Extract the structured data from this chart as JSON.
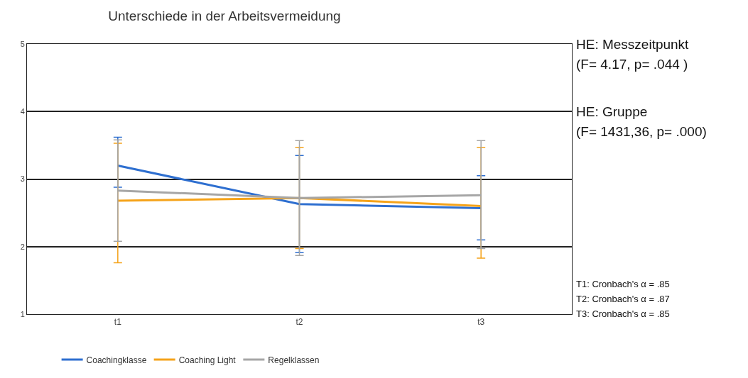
{
  "chart_data": {
    "type": "line",
    "title": "Unterschiede in der Arbeitsvermeidung",
    "categories": [
      "t1",
      "t2",
      "t3"
    ],
    "series": [
      {
        "name": "Coachingklasse",
        "color": "#2e6fd0",
        "values": [
          3.2,
          2.63,
          2.57
        ],
        "errors": [
          [
            2.88,
            3.62
          ],
          [
            1.91,
            3.35
          ],
          [
            2.1,
            3.05
          ]
        ]
      },
      {
        "name": "Coaching Light",
        "color": "#f5a31a",
        "values": [
          2.68,
          2.72,
          2.6
        ],
        "errors": [
          [
            1.76,
            3.53
          ],
          [
            1.97,
            3.47
          ],
          [
            1.83,
            3.47
          ]
        ]
      },
      {
        "name": "Regelklassen",
        "color": "#a6a6a6",
        "values": [
          2.83,
          2.72,
          2.76
        ],
        "errors": [
          [
            2.08,
            3.58
          ],
          [
            1.87,
            3.57
          ],
          [
            1.97,
            3.57
          ]
        ]
      }
    ],
    "ylim": [
      1,
      5
    ],
    "yticks": [
      1,
      2,
      3,
      4,
      5
    ],
    "grid": "y",
    "legend": "bottom",
    "marker": "none",
    "line_style": "solid",
    "annotations": [
      "HE: Messzeitpunkt",
      "(F= 4.17, p= .044 )",
      "HE: Gruppe",
      "(F= 1431,36, p= .000)",
      "T1: Cronbach's α = .85",
      "T2: Cronbach's α = .87",
      "T3: Cronbach's α = .85"
    ]
  }
}
